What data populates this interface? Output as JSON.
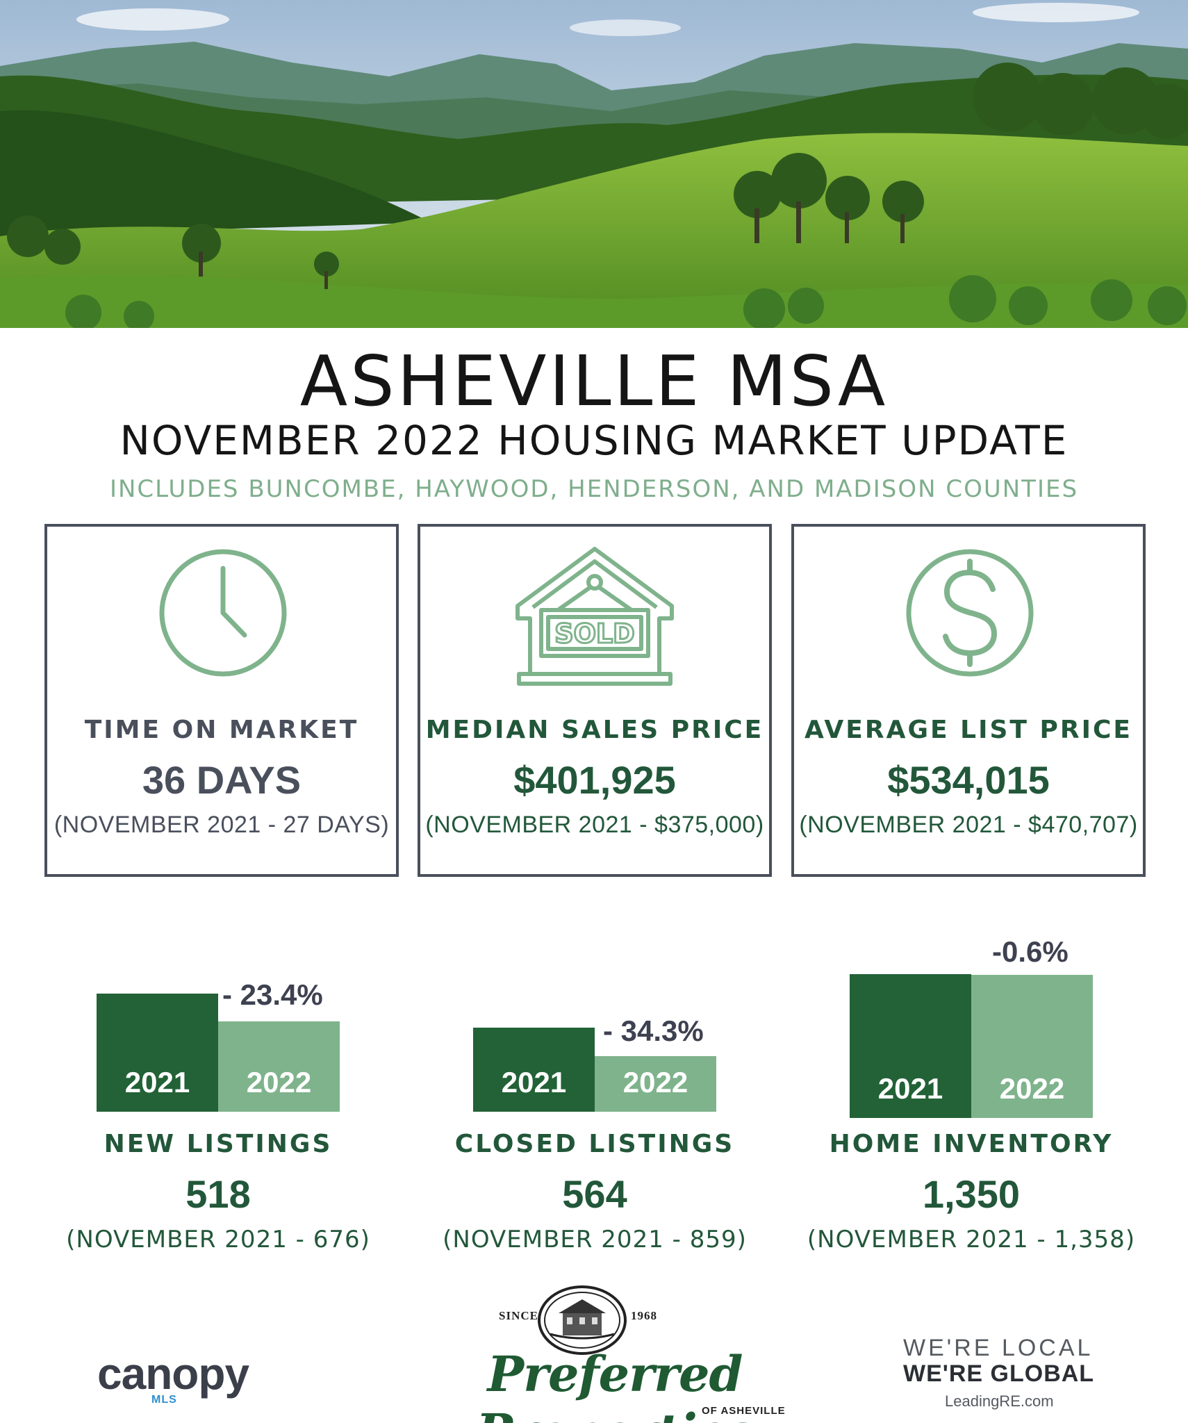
{
  "header": {
    "title": "ASHEVILLE MSA",
    "subtitle": "NOVEMBER 2022 HOUSING MARKET UPDATE",
    "includes": "INCLUDES BUNCOMBE, HAYWOOD, HENDERSON, AND MADISON COUNTIES"
  },
  "stats": [
    {
      "icon": "clock-icon",
      "label": "TIME ON MARKET",
      "value": "36 DAYS",
      "compare": "(NOVEMBER 2021 - 27 DAYS)"
    },
    {
      "icon": "sold-house-icon",
      "icon_text": "SOLD",
      "label": "MEDIAN SALES PRICE",
      "value": "$401,925",
      "compare": "(NOVEMBER 2021 - $375,000)"
    },
    {
      "icon": "dollar-icon",
      "label": "AVERAGE LIST PRICE",
      "value": "$534,015",
      "compare": "(NOVEMBER 2021 - $470,707)"
    }
  ],
  "metrics": [
    {
      "label": "NEW LISTINGS",
      "value": "518",
      "compare": "(NOVEMBER 2021 - 676)",
      "change": "- 23.4%",
      "bars": [
        {
          "year": "2021",
          "value": 676
        },
        {
          "year": "2022",
          "value": 518
        }
      ]
    },
    {
      "label": "CLOSED LISTINGS",
      "value": "564",
      "compare": "(NOVEMBER 2021 - 859)",
      "change": "- 34.3%",
      "bars": [
        {
          "year": "2021",
          "value": 859
        },
        {
          "year": "2022",
          "value": 564
        }
      ]
    },
    {
      "label": "HOME INVENTORY",
      "value": "1,350",
      "compare": "(NOVEMBER 2021 - 1,358)",
      "change": "-0.6%",
      "bars": [
        {
          "year": "2021",
          "value": 1358
        },
        {
          "year": "2022",
          "value": 1350
        }
      ]
    }
  ],
  "footer": {
    "canopy": {
      "word": "canopy",
      "sub": "MLS"
    },
    "preferred": {
      "since": "SINCE",
      "year": "1968",
      "name": "Preferred Properties",
      "sub": "OF ASHEVILLE"
    },
    "leading": {
      "line1": "WE'RE LOCAL",
      "line2": "WE'RE GLOBAL",
      "url": "LeadingRE.com"
    }
  },
  "colors": {
    "dark_green": "#226236",
    "light_green": "#7fb38c",
    "accent_green": "#7fae8c",
    "box_border": "#4a4f5c"
  }
}
